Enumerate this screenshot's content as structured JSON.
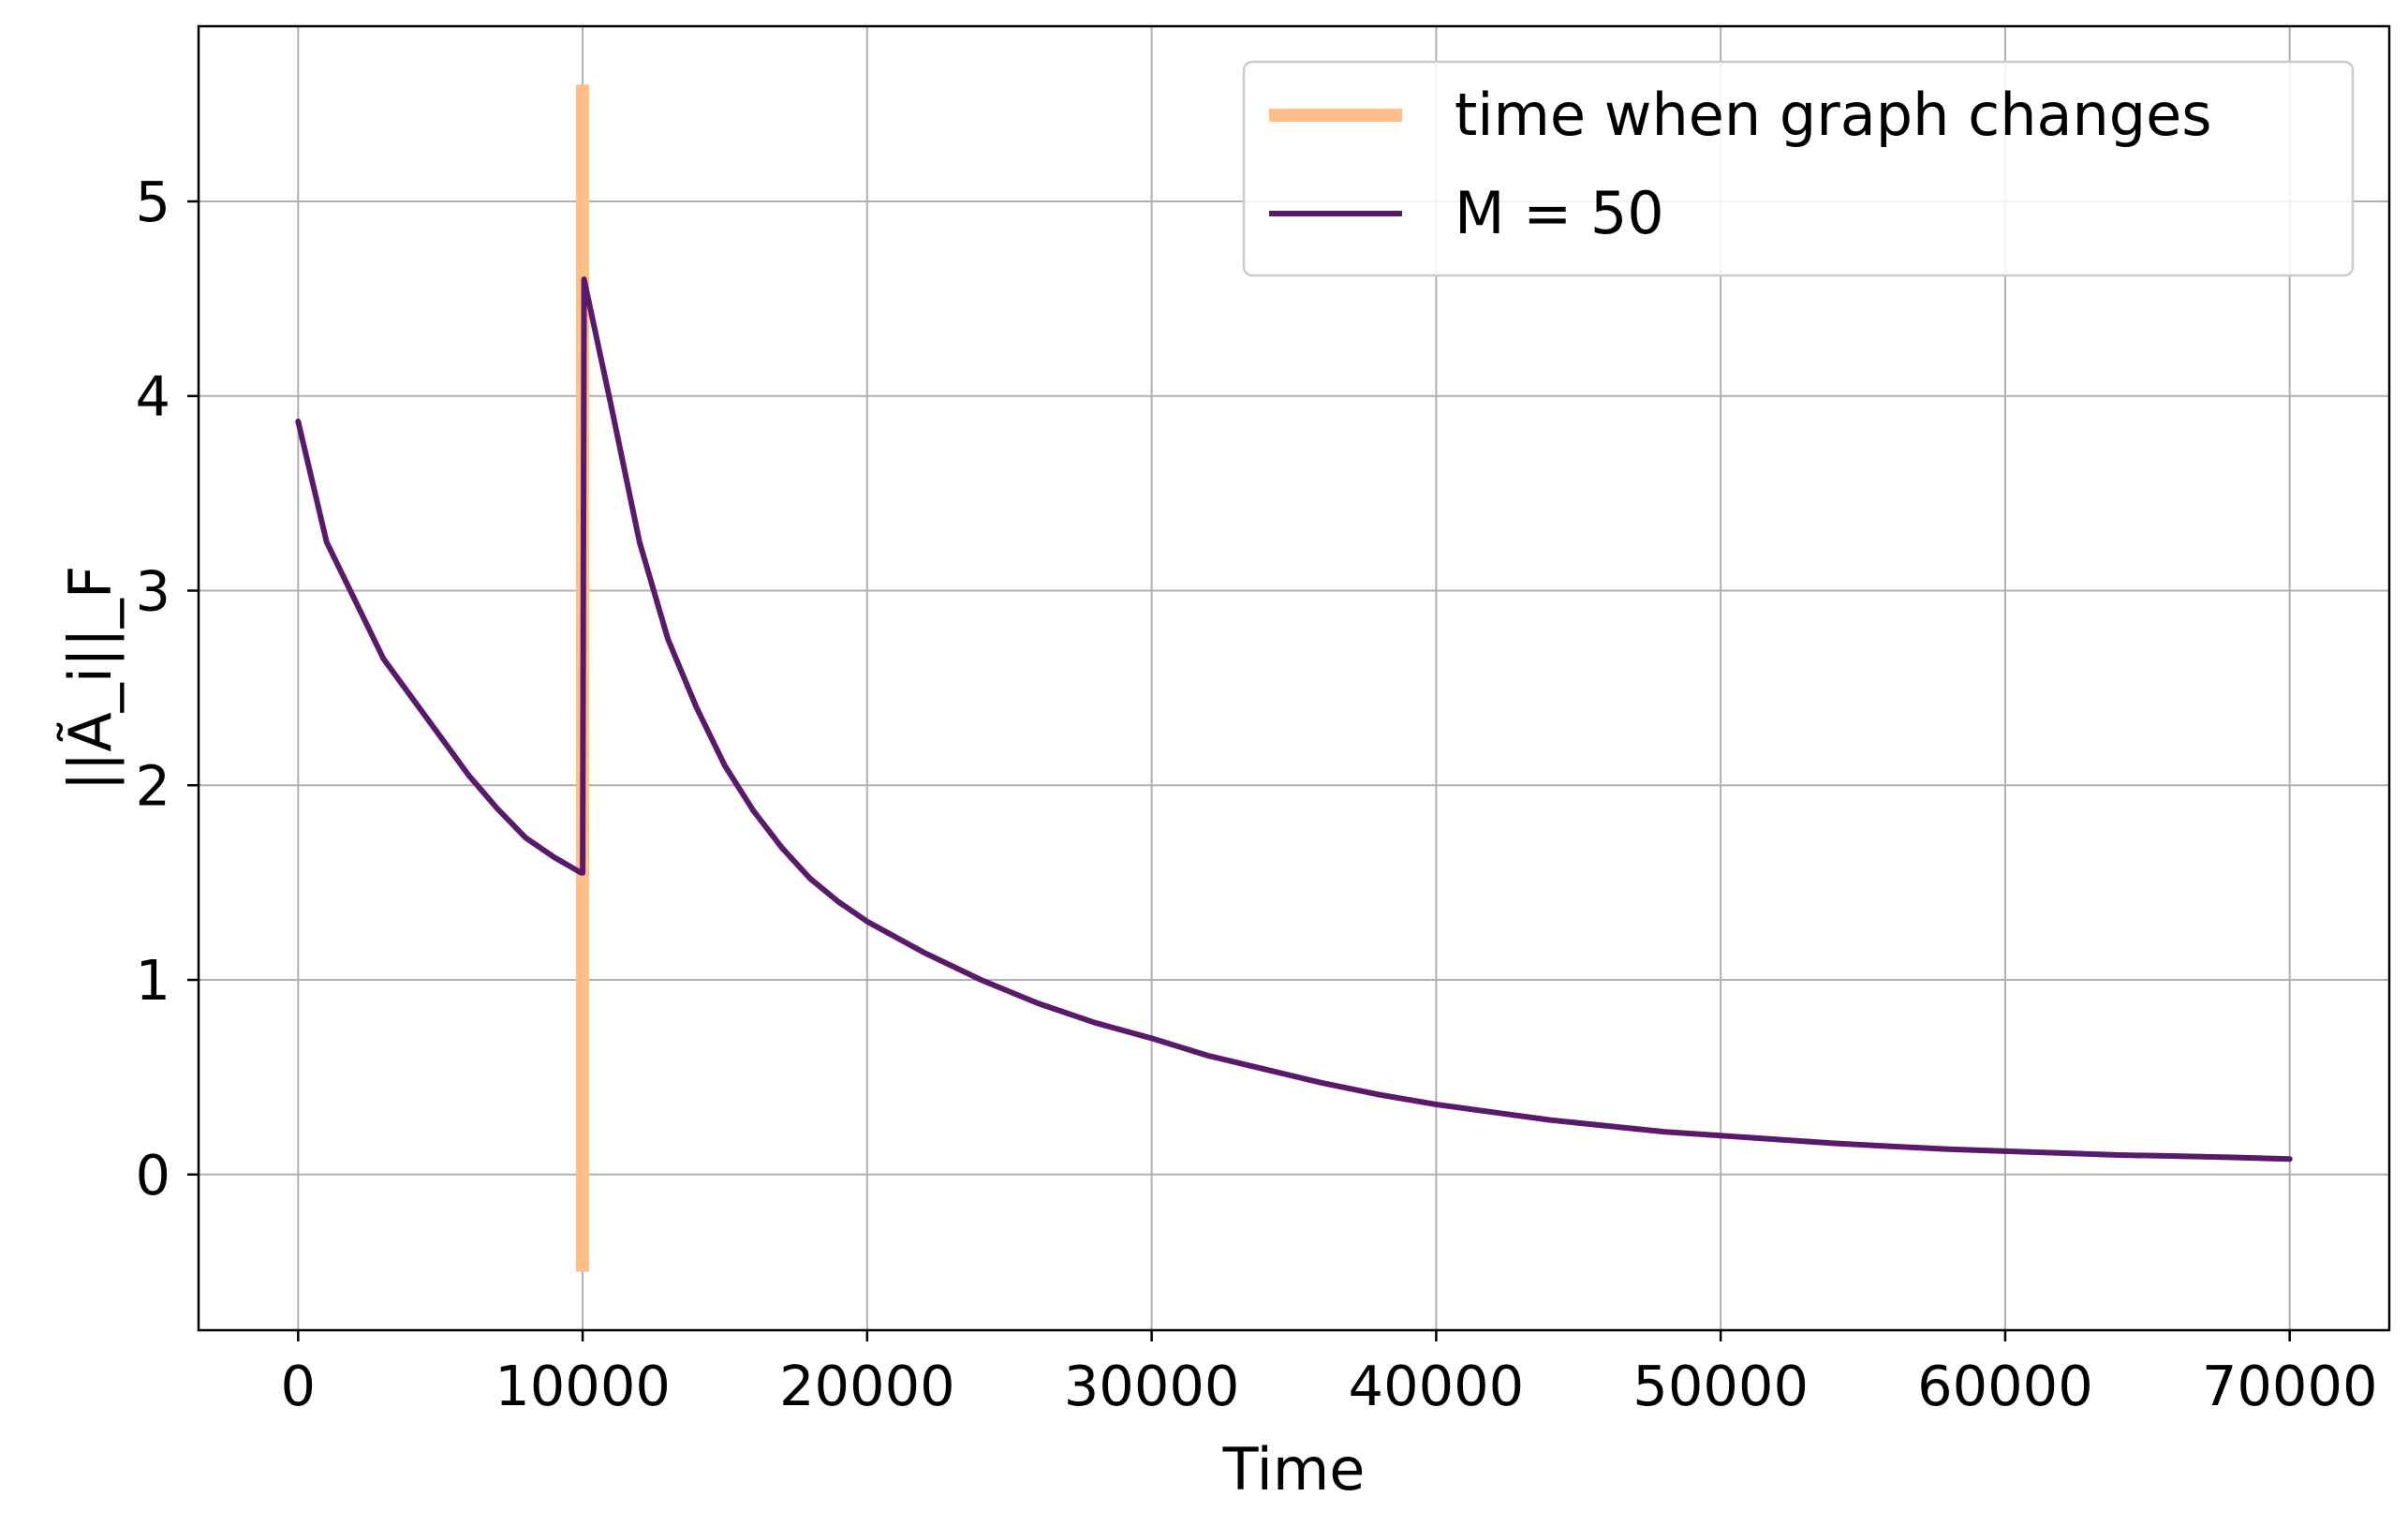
{
  "chart_data": {
    "type": "line",
    "xlabel": "Time",
    "ylabel": "||Ã_i||_F",
    "xlim": [
      -3500,
      73500
    ],
    "ylim": [
      -0.8,
      5.9
    ],
    "xticks": [
      0,
      10000,
      20000,
      30000,
      40000,
      50000,
      60000,
      70000
    ],
    "xtick_labels": [
      "0",
      "10000",
      "20000",
      "30000",
      "40000",
      "50000",
      "60000",
      "70000"
    ],
    "yticks": [
      0,
      1,
      2,
      3,
      4,
      5
    ],
    "ytick_labels": [
      "0",
      "1",
      "2",
      "3",
      "4",
      "5"
    ],
    "grid": true,
    "legend_position": "top-right",
    "series": [
      {
        "name": "time when graph changes",
        "kind": "vertical-line",
        "color": "#ffbf86",
        "x": [
          10000,
          10000
        ],
        "y": [
          -0.5,
          5.6
        ]
      },
      {
        "name": "M = 50",
        "kind": "line",
        "color": "#5a1a6c",
        "x": [
          0,
          1000,
          2000,
          3000,
          4000,
          5000,
          6000,
          7000,
          8000,
          9000,
          9950,
          10000,
          10050,
          11000,
          12000,
          13000,
          14000,
          15000,
          16000,
          17000,
          18000,
          19000,
          20000,
          22000,
          24000,
          26000,
          28000,
          30000,
          32000,
          34000,
          36000,
          38000,
          40000,
          42000,
          44000,
          46000,
          48000,
          50000,
          52000,
          54000,
          56000,
          58000,
          60000,
          62000,
          64000,
          66000,
          68000,
          70000
        ],
        "y": [
          3.87,
          3.25,
          2.95,
          2.65,
          2.45,
          2.25,
          2.05,
          1.88,
          1.73,
          1.63,
          1.55,
          1.55,
          4.6,
          3.95,
          3.25,
          2.75,
          2.4,
          2.1,
          1.87,
          1.68,
          1.52,
          1.4,
          1.3,
          1.14,
          1.0,
          0.88,
          0.78,
          0.7,
          0.61,
          0.54,
          0.47,
          0.41,
          0.36,
          0.32,
          0.28,
          0.25,
          0.22,
          0.2,
          0.18,
          0.16,
          0.145,
          0.13,
          0.12,
          0.11,
          0.1,
          0.095,
          0.088,
          0.08
        ]
      }
    ]
  }
}
